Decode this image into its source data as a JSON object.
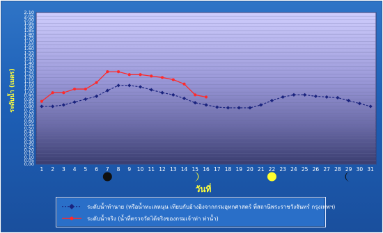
{
  "chart_data": {
    "type": "line",
    "ylabel": "ระดับน้ำ (เมตร)",
    "xlabel": "วันที่",
    "ylim": [
      0,
      2.1
    ],
    "ytick_step": 0.05,
    "x": [
      1,
      2,
      3,
      4,
      5,
      6,
      7,
      8,
      9,
      10,
      11,
      12,
      13,
      14,
      15,
      16,
      17,
      18,
      19,
      20,
      21,
      22,
      23,
      24,
      25,
      26,
      27,
      28,
      29,
      30,
      31
    ],
    "series": [
      {
        "name": "ระดับน้ำทำนาย (หรือน้ำทะเลหนุน เทียบกับอ้างอิงจากกรมอุทกศาสตร์ ที่สถานีพระราชวังจันทร์ กรุงเทพฯ)",
        "color": "#1a237e",
        "marker": "diamond",
        "values": [
          0.8,
          0.8,
          0.82,
          0.86,
          0.9,
          0.94,
          1.02,
          1.09,
          1.09,
          1.07,
          1.03,
          0.99,
          0.96,
          0.91,
          0.85,
          0.82,
          0.79,
          0.78,
          0.78,
          0.78,
          0.82,
          0.88,
          0.93,
          0.96,
          0.96,
          0.94,
          0.93,
          0.92,
          0.88,
          0.84,
          0.8
        ]
      },
      {
        "name": "ระดับน้ำจริง (น้ำที่ตรวจวัดได้จริงของกรมเจ้าท่า ท่าน้ำ)",
        "color": "#ff2a2a",
        "marker": "circle",
        "values": [
          0.87,
          0.99,
          0.99,
          1.04,
          1.04,
          1.13,
          1.28,
          1.28,
          1.24,
          1.24,
          1.22,
          1.2,
          1.17,
          1.11,
          0.96,
          0.93,
          null,
          null,
          null,
          null,
          null,
          null,
          null,
          null,
          null,
          null,
          null,
          null,
          null,
          null,
          null
        ]
      }
    ],
    "moon_phases": [
      {
        "day": 7,
        "phase": "new-moon"
      },
      {
        "day": 15,
        "phase": "first-quarter"
      },
      {
        "day": 22,
        "phase": "full-moon"
      },
      {
        "day": 29,
        "phase": "last-quarter"
      }
    ]
  },
  "colors": {
    "panel_bg": "#1f63b8",
    "plot_top": "#c9c7ff",
    "plot_bottom": "#3b3f73",
    "grid": "#6c6fa0",
    "axis_text": "#ffffff",
    "axis_title": "#ffff3c"
  },
  "legend": {
    "items": [
      {
        "label": "ระดับน้ำทำนาย (หรือน้ำทะเลหนุน เทียบกับอ้างอิงจากกรมอุทกศาสตร์ ที่สถานีพระราชวังจันทร์ กรุงเทพฯ)"
      },
      {
        "label": "ระดับน้ำจริง (น้ำที่ตรวจวัดได้จริงของกรมเจ้าท่า ท่าน้ำ)"
      }
    ]
  }
}
